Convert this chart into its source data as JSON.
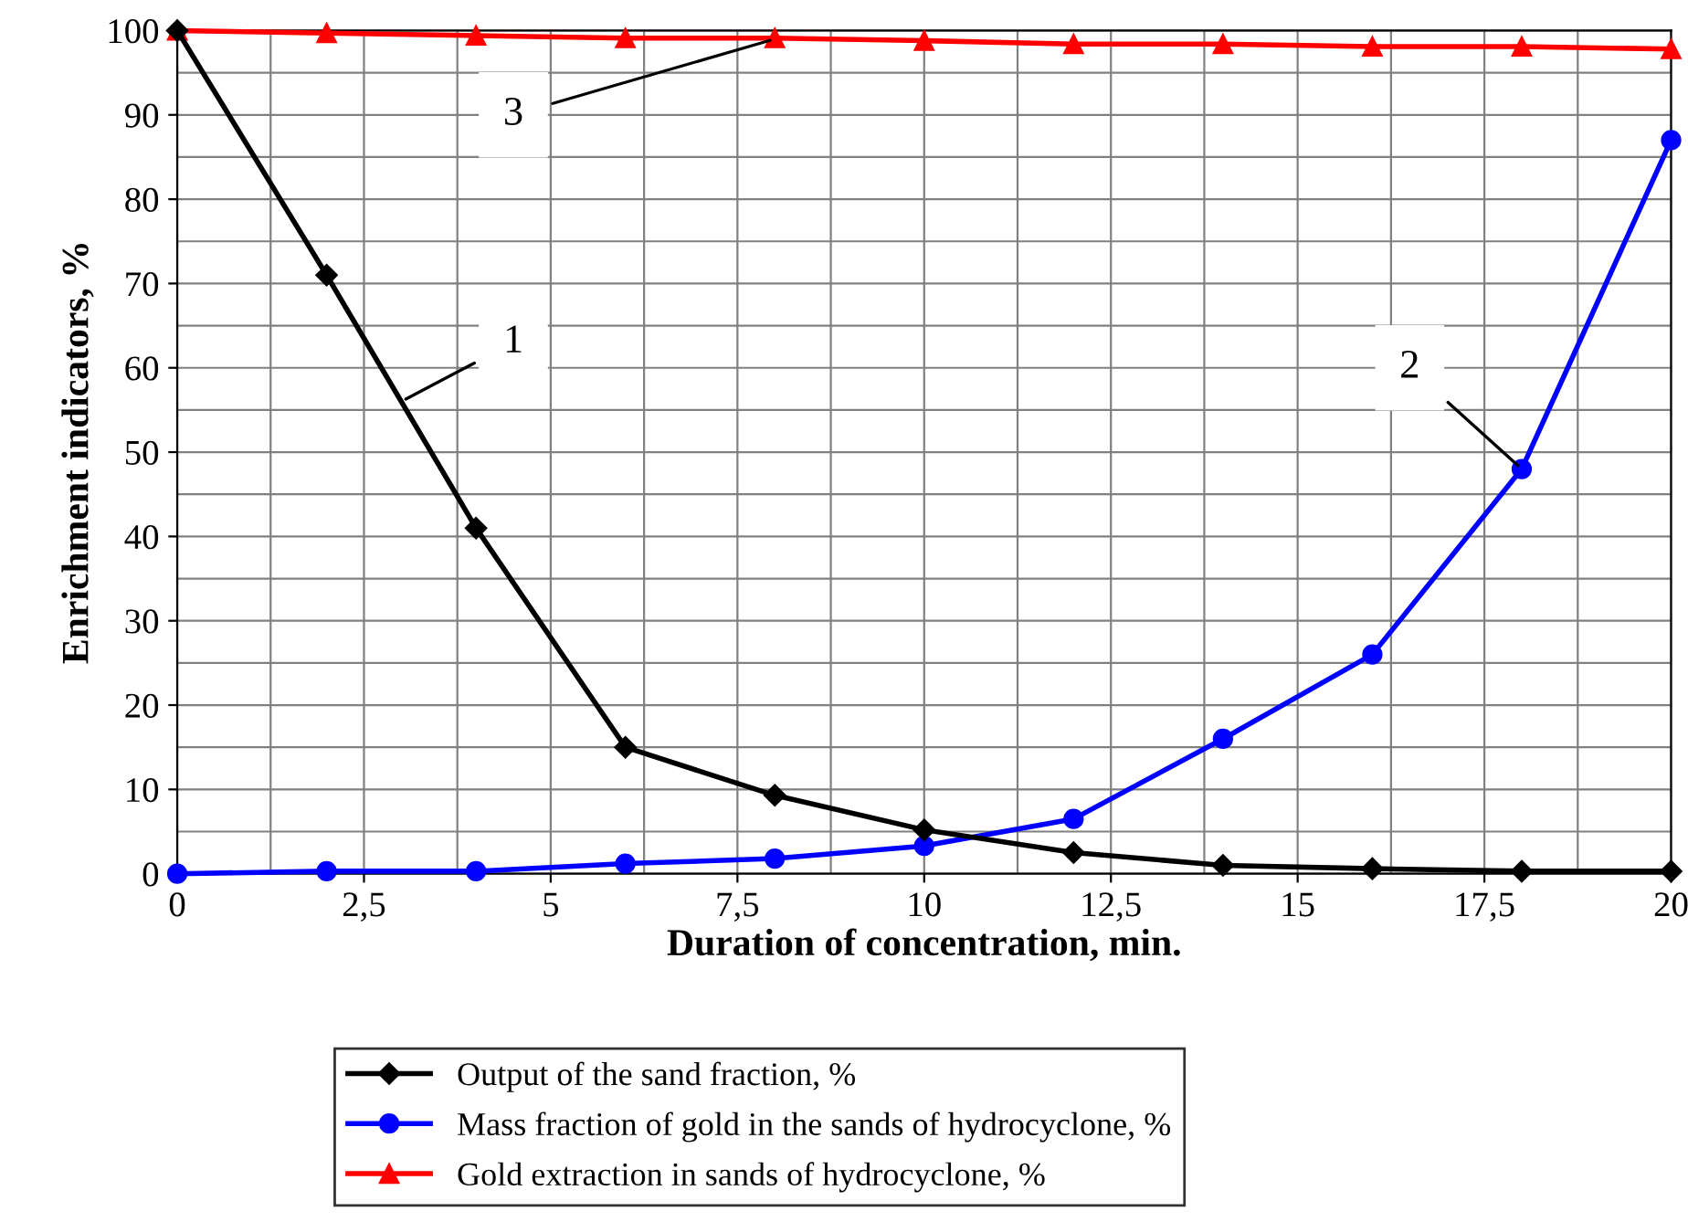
{
  "chart_data": {
    "type": "line",
    "xlabel": "Duration of concentration, min.",
    "ylabel": "Enrichment indicators, %",
    "x": [
      0,
      2,
      4,
      6,
      8,
      10,
      12,
      14,
      16,
      18,
      20
    ],
    "series": [
      {
        "name": "Output of the sand fraction, %",
        "color": "#000000",
        "marker": "diamond",
        "values": [
          100,
          71,
          41,
          15,
          9.3,
          5.2,
          2.5,
          1,
          0.6,
          0.3,
          0.3
        ]
      },
      {
        "name": "Mass fraction of gold in the sands of hydrocyclone, %",
        "color": "#0000ff",
        "marker": "circle",
        "values": [
          0,
          0.3,
          0.3,
          1.2,
          1.8,
          3.3,
          6.5,
          16,
          26,
          48,
          87
        ]
      },
      {
        "name": "Gold extraction in sands of hydrocyclone, %",
        "color": "#ff0000",
        "marker": "triangle",
        "values": [
          100,
          99.7,
          99.4,
          99.1,
          99.1,
          98.8,
          98.4,
          98.4,
          98.1,
          98.1,
          97.8
        ]
      }
    ],
    "annotations": [
      {
        "text": "1",
        "x": 3,
        "y": 56
      },
      {
        "text": "2",
        "x": 18,
        "y": 48
      },
      {
        "text": "3",
        "x": 8,
        "y": 99
      }
    ],
    "xlim": [
      0,
      20
    ],
    "ylim": [
      0,
      100
    ],
    "xticks": [
      0,
      {
        "value": 2.5,
        "label": "2,5"
      },
      5,
      {
        "value": 7.5,
        "label": "7,5"
      },
      10,
      {
        "value": 12.5,
        "label": "12,5"
      },
      15,
      {
        "value": 17.5,
        "label": "17,5"
      },
      20
    ],
    "yticks": [
      0,
      10,
      20,
      30,
      40,
      50,
      60,
      70,
      80,
      90,
      100
    ],
    "grid": true,
    "legend": "bottom",
    "line_style": "solid"
  }
}
